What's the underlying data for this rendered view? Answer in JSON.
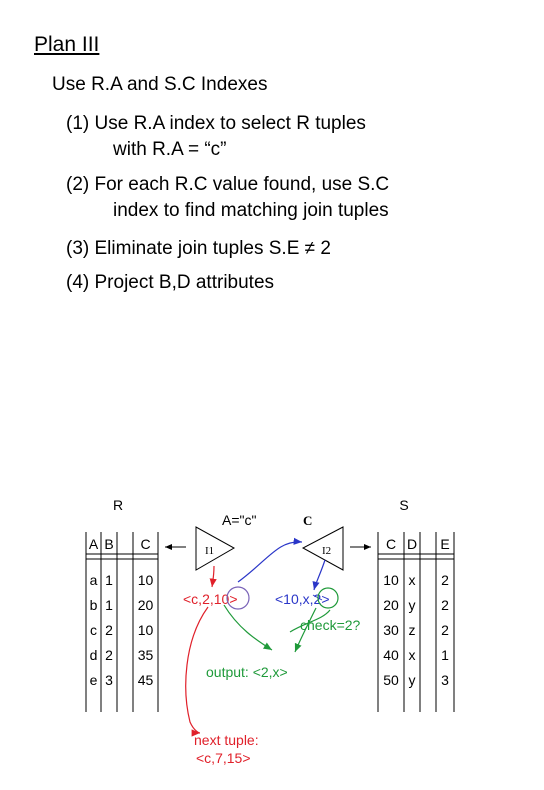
{
  "title": "Plan III",
  "subtitle": "Use R.A and S.C Indexes",
  "steps": [
    {
      "line1": "(1) Use R.A index to select R tuples",
      "line2": "with R.A = “c”"
    },
    {
      "line1": "(2) For each R.C value found, use S.C",
      "line2": "index to find matching join tuples"
    },
    {
      "line1": "(3) Eliminate join tuples S.E ≠ 2"
    },
    {
      "line1": "(4) Project B,D attributes"
    }
  ],
  "diagram": {
    "relation_r": {
      "name": "R",
      "headers": [
        "A",
        "B",
        "C"
      ],
      "rows": [
        [
          "a",
          "1",
          "10"
        ],
        [
          "b",
          "1",
          "20"
        ],
        [
          "c",
          "2",
          "10"
        ],
        [
          "d",
          "2",
          "35"
        ],
        [
          "e",
          "3",
          "45"
        ]
      ]
    },
    "relation_s": {
      "name": "S",
      "headers": [
        "C",
        "D",
        "E"
      ],
      "rows": [
        [
          "10",
          "x",
          "2"
        ],
        [
          "20",
          "y",
          "2"
        ],
        [
          "30",
          "z",
          "2"
        ],
        [
          "40",
          "x",
          "1"
        ],
        [
          "50",
          "y",
          "3"
        ]
      ]
    },
    "index_i1": {
      "label": "I1",
      "condition": "A=\"c\""
    },
    "index_i2": {
      "label": "I2",
      "attribute": "C"
    },
    "tuple_r": "<c,2,10>",
    "tuple_s": "<10,x,2>",
    "check": "check=2?",
    "output": "output: <2,x>",
    "next_tuple_label": "next tuple:",
    "next_tuple": "<c,7,15>",
    "colors": {
      "red": "#e0202a",
      "green": "#1f9a3a",
      "blue": "#2a36c8",
      "purple": "#7a63b8"
    }
  }
}
